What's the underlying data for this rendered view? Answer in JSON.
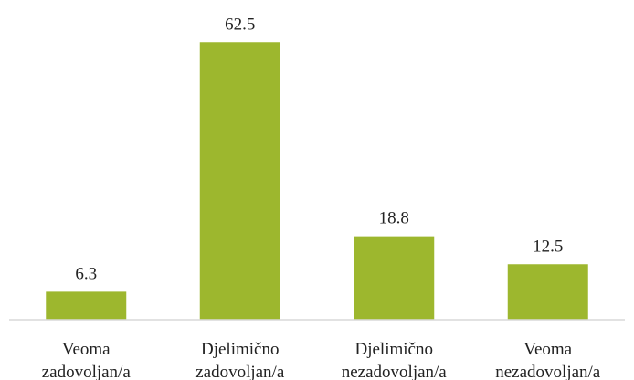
{
  "chart_data": {
    "type": "bar",
    "categories": [
      [
        "Veoma",
        "zadovoljan/a"
      ],
      [
        "Djelimično",
        "zadovoljan/a"
      ],
      [
        "Djelimično",
        "nezadovoljan/a"
      ],
      [
        "Veoma",
        "nezadovoljan/a"
      ]
    ],
    "values": [
      6.3,
      62.5,
      18.8,
      12.5
    ],
    "data_labels": [
      "6.3",
      "62.5",
      "18.8",
      "12.5"
    ],
    "title": "",
    "xlabel": "",
    "ylabel": "",
    "ylim": [
      0,
      70
    ],
    "grid": false,
    "legend": "none",
    "bar_color": "#9DB72E",
    "axis_color": "#D9D9D9"
  }
}
